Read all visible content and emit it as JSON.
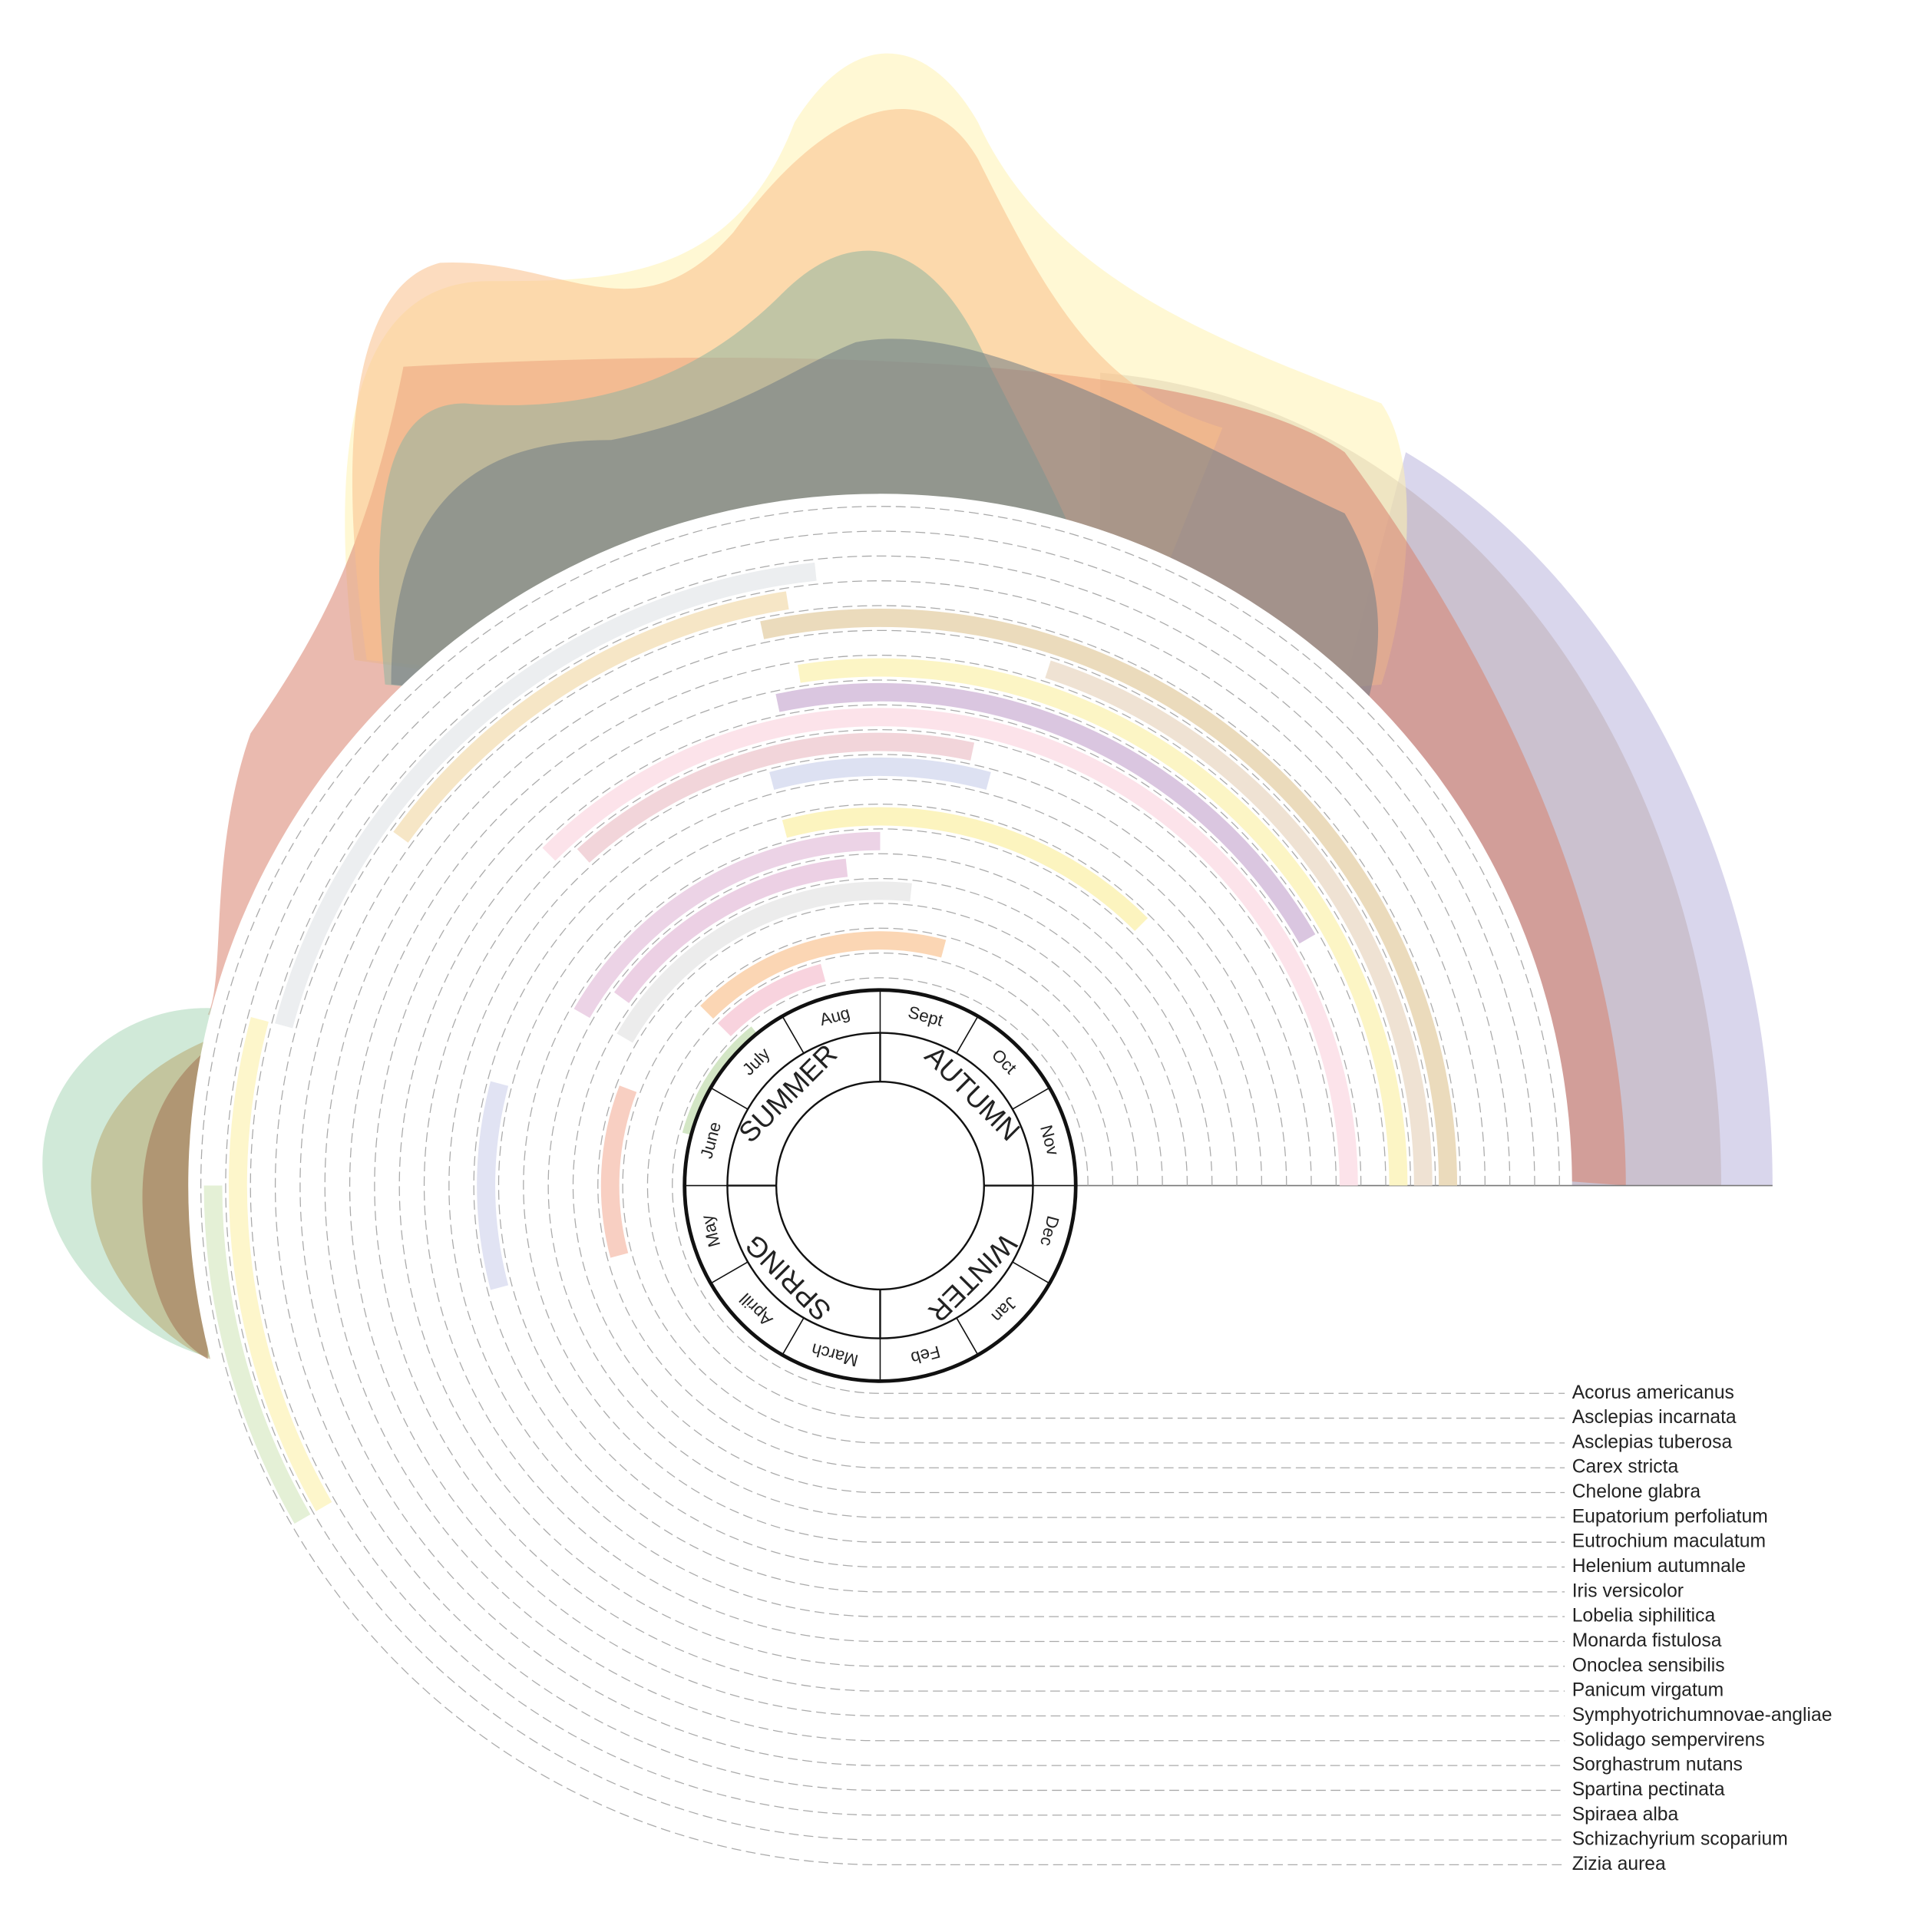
{
  "months": [
    "Jan",
    "Feb",
    "March",
    "Aprill",
    "May",
    "June",
    "July",
    "Aug",
    "Sept",
    "Oct",
    "Nov",
    "Dec"
  ],
  "seasons": [
    "WINTER",
    "SPRING",
    "SUMMER",
    "AUTUMN"
  ],
  "species": [
    {
      "name": "Acorus americanus",
      "bloom": [
        5.5,
        6.7
      ],
      "color": "#d3e6c5"
    },
    {
      "name": "Asclepias incarnata",
      "bloom": [
        6.5,
        7.5
      ],
      "color": "#f8d3de"
    },
    {
      "name": "Asclepias tuberosa",
      "bloom": [
        6.5,
        8.5
      ],
      "color": "#fbd6b4"
    },
    {
      "name": "Carex stricta",
      "bloom": [
        4.5,
        5.7
      ],
      "color": "#f8cfc2"
    },
    {
      "name": "Chelone glabra",
      "bloom": [
        6.0,
        8.2
      ],
      "color": "#ececec"
    },
    {
      "name": "Eupatorium perfoliatum",
      "bloom": [
        6.2,
        7.8
      ],
      "color": "#ecd0e4"
    },
    {
      "name": "Eutrochium maculatum",
      "bloom": [
        6.0,
        8.0
      ],
      "color": "#ecd3e6"
    },
    {
      "name": "Helenium autumnale",
      "bloom": [
        7.5,
        9.5
      ],
      "color": "#fcf4bf"
    },
    {
      "name": "Iris versicolor",
      "bloom": [
        4.5,
        5.5
      ],
      "color": "#e1e3f3"
    },
    {
      "name": "Lobelia siphilitica",
      "bloom": [
        7.5,
        8.5
      ],
      "color": "#dde1f2"
    },
    {
      "name": "Monarda fistulosa",
      "bloom": [
        6.6,
        8.4
      ],
      "color": "#f2d5da"
    },
    {
      "name": "Onoclea sensibilis",
      "bloom": [
        6.5,
        11
      ],
      "color": "#fce3ea"
    },
    {
      "name": "Panicum virgatum",
      "bloom": [
        7.6,
        10.0
      ],
      "color": "#dac6e0"
    },
    {
      "name": "Symphyotrichumnovae-angliae",
      "bloom": [
        7.7,
        11
      ],
      "color": "#fcf5c5"
    },
    {
      "name": "Solidago sempervirens",
      "bloom": [
        8.6,
        11
      ],
      "color": "#efe2d3"
    },
    {
      "name": "Sorghastrum nutans",
      "bloom": [
        7.6,
        11
      ],
      "color": "#ebdbbc"
    },
    {
      "name": "Spartina pectinata",
      "bloom": [
        6.2,
        7.7
      ],
      "color": "#f6e6c6"
    },
    {
      "name": "Spiraea alba",
      "bloom": [
        5.5,
        7.8
      ],
      "color": "#eceef0"
    },
    {
      "name": "Schizachyrium scoparium",
      "bloom": [
        4.0,
        5.5
      ],
      "color": "#fdf6cb"
    },
    {
      "name": "Zizia aurea",
      "bloom": [
        4.0,
        5.0
      ],
      "color": "#e4f0d6"
    }
  ]
}
